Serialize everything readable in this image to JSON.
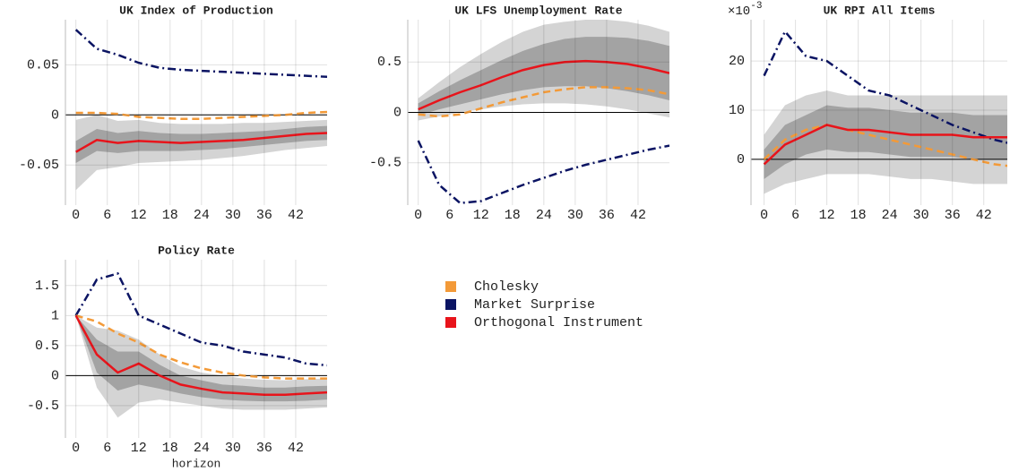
{
  "legend": [
    {
      "name": "Cholesky",
      "color": "#f39a38",
      "dash": "8 5"
    },
    {
      "name": "Market Surprise",
      "color": "#0b1463",
      "dash": "9 4 2 4"
    },
    {
      "name": "Orthogonal Instrument",
      "color": "#e8141b",
      "dash": "none"
    }
  ],
  "chart_data": [
    {
      "type": "line",
      "title": "UK Index of Production",
      "x": [
        0,
        4,
        8,
        12,
        16,
        20,
        24,
        28,
        32,
        36,
        40,
        44,
        48
      ],
      "xlim": [
        -2,
        48
      ],
      "xticks": [
        0,
        6,
        12,
        18,
        24,
        30,
        36,
        42
      ],
      "ylim": [
        -0.09,
        0.095
      ],
      "yticks": [
        -0.05,
        0,
        0.05
      ],
      "grid": true,
      "bands": [
        {
          "color": "#d4d4d4",
          "lower": [
            -0.075,
            -0.055,
            -0.052,
            -0.048,
            -0.047,
            -0.046,
            -0.045,
            -0.043,
            -0.041,
            -0.038,
            -0.035,
            -0.033,
            -0.031
          ],
          "upper": [
            -0.005,
            0.0,
            -0.006,
            -0.005,
            -0.008,
            -0.009,
            -0.009,
            -0.009,
            -0.008,
            -0.008,
            -0.007,
            -0.006,
            -0.005
          ]
        },
        {
          "color": "#a3a3a3",
          "lower": [
            -0.048,
            -0.036,
            -0.038,
            -0.036,
            -0.036,
            -0.036,
            -0.035,
            -0.034,
            -0.032,
            -0.03,
            -0.028,
            -0.026,
            -0.025
          ],
          "upper": [
            -0.026,
            -0.014,
            -0.018,
            -0.016,
            -0.018,
            -0.019,
            -0.019,
            -0.018,
            -0.017,
            -0.016,
            -0.014,
            -0.012,
            -0.011
          ]
        }
      ],
      "series": [
        {
          "values": [
            0.002,
            0.002,
            0.001,
            -0.002,
            -0.003,
            -0.004,
            -0.004,
            -0.003,
            -0.002,
            -0.001,
            0.0,
            0.002,
            0.003
          ]
        },
        {
          "values": [
            0.085,
            0.066,
            0.06,
            0.052,
            0.047,
            0.045,
            0.044,
            0.043,
            0.042,
            0.041,
            0.04,
            0.039,
            0.038
          ]
        },
        {
          "values": [
            -0.037,
            -0.025,
            -0.028,
            -0.026,
            -0.027,
            -0.028,
            -0.027,
            -0.026,
            -0.025,
            -0.023,
            -0.021,
            -0.019,
            -0.018
          ]
        }
      ]
    },
    {
      "type": "line",
      "title": "UK LFS Unemployment Rate",
      "x": [
        0,
        4,
        8,
        12,
        16,
        20,
        24,
        28,
        32,
        36,
        40,
        44,
        48
      ],
      "xlim": [
        -2,
        48
      ],
      "xticks": [
        0,
        6,
        12,
        18,
        24,
        30,
        36,
        42
      ],
      "ylim": [
        -0.92,
        0.92
      ],
      "yticks": [
        -0.5,
        0,
        0.5
      ],
      "grid": true,
      "bands": [
        {
          "color": "#d4d4d4",
          "lower": [
            -0.08,
            -0.04,
            0.0,
            0.03,
            0.06,
            0.08,
            0.09,
            0.09,
            0.08,
            0.06,
            0.03,
            -0.01,
            -0.05
          ],
          "upper": [
            0.14,
            0.3,
            0.45,
            0.58,
            0.7,
            0.8,
            0.87,
            0.9,
            0.92,
            0.92,
            0.9,
            0.86,
            0.8
          ]
        },
        {
          "color": "#a3a3a3",
          "lower": [
            -0.03,
            0.03,
            0.08,
            0.13,
            0.18,
            0.22,
            0.25,
            0.26,
            0.26,
            0.24,
            0.21,
            0.17,
            0.12
          ],
          "upper": [
            0.09,
            0.21,
            0.32,
            0.42,
            0.52,
            0.61,
            0.68,
            0.73,
            0.75,
            0.75,
            0.74,
            0.71,
            0.66
          ]
        }
      ],
      "series": [
        {
          "values": [
            -0.02,
            -0.04,
            -0.02,
            0.04,
            0.1,
            0.15,
            0.2,
            0.23,
            0.25,
            0.25,
            0.24,
            0.22,
            0.18
          ]
        },
        {
          "values": [
            -0.28,
            -0.72,
            -0.9,
            -0.88,
            -0.8,
            -0.72,
            -0.65,
            -0.58,
            -0.52,
            -0.47,
            -0.42,
            -0.37,
            -0.33
          ]
        },
        {
          "values": [
            0.03,
            0.12,
            0.2,
            0.27,
            0.35,
            0.42,
            0.47,
            0.5,
            0.51,
            0.5,
            0.48,
            0.44,
            0.39
          ]
        }
      ]
    },
    {
      "type": "line",
      "title": "UK RPI All Items",
      "yscale_base": "×10",
      "yscale_exponent": "-3",
      "x": [
        0,
        4,
        8,
        12,
        16,
        20,
        24,
        28,
        32,
        36,
        40,
        44,
        48
      ],
      "xlim": [
        -2.5,
        46.5
      ],
      "xticks": [
        0,
        6,
        12,
        18,
        24,
        30,
        36,
        42
      ],
      "ylim": [
        -9.3,
        28.4
      ],
      "yticks": [
        0,
        10,
        20
      ],
      "grid": true,
      "bands": [
        {
          "color": "#d4d4d4",
          "lower": [
            -7,
            -5,
            -4,
            -3,
            -3,
            -3,
            -3.5,
            -4,
            -4,
            -4.5,
            -5,
            -5,
            -5
          ],
          "upper": [
            5,
            11,
            13,
            14,
            13,
            13,
            13,
            13,
            13,
            13,
            13,
            13,
            13
          ]
        },
        {
          "color": "#a3a3a3",
          "lower": [
            -4,
            -1,
            1,
            2,
            1.5,
            1.5,
            1,
            0.5,
            0.5,
            0.5,
            0,
            0,
            0
          ],
          "upper": [
            2,
            7,
            9,
            11,
            10.5,
            10.5,
            10,
            9.5,
            9.5,
            9.5,
            9,
            9,
            9
          ]
        }
      ],
      "series": [
        {
          "values": [
            0,
            4,
            6,
            7,
            6,
            5,
            4,
            3,
            2,
            1,
            0,
            -1,
            -1.5
          ]
        },
        {
          "values": [
            17,
            26,
            21,
            20,
            17,
            14,
            13,
            11,
            9,
            7,
            5.5,
            4,
            3
          ]
        },
        {
          "values": [
            -1,
            3,
            5,
            7,
            6,
            6,
            5.5,
            5,
            5,
            5,
            4.5,
            4.5,
            4.5
          ]
        }
      ]
    },
    {
      "type": "line",
      "title": "Policy Rate",
      "xlabel": "horizon",
      "x": [
        0,
        4,
        8,
        12,
        16,
        20,
        24,
        28,
        32,
        36,
        40,
        44,
        48
      ],
      "xlim": [
        -2,
        48
      ],
      "xticks": [
        0,
        6,
        12,
        18,
        24,
        30,
        36,
        42
      ],
      "ylim": [
        -1.04,
        1.93
      ],
      "yticks": [
        -0.5,
        0,
        0.5,
        1,
        1.5
      ],
      "grid": true,
      "bands": [
        {
          "color": "#d4d4d4",
          "lower": [
            1.0,
            -0.2,
            -0.7,
            -0.45,
            -0.4,
            -0.45,
            -0.5,
            -0.55,
            -0.57,
            -0.57,
            -0.57,
            -0.55,
            -0.53
          ],
          "upper": [
            1.0,
            0.8,
            0.75,
            0.6,
            0.35,
            0.15,
            0.05,
            0.0,
            -0.05,
            -0.07,
            -0.08,
            -0.06,
            -0.05
          ]
        },
        {
          "color": "#a3a3a3",
          "lower": [
            1.0,
            0.05,
            -0.25,
            -0.15,
            -0.22,
            -0.3,
            -0.36,
            -0.4,
            -0.42,
            -0.43,
            -0.43,
            -0.42,
            -0.4
          ],
          "upper": [
            1.0,
            0.6,
            0.4,
            0.4,
            0.18,
            0.0,
            -0.08,
            -0.15,
            -0.17,
            -0.2,
            -0.2,
            -0.18,
            -0.17
          ]
        }
      ],
      "series": [
        {
          "values": [
            1.0,
            0.9,
            0.7,
            0.55,
            0.35,
            0.22,
            0.12,
            0.05,
            0.0,
            -0.03,
            -0.05,
            -0.05,
            -0.05
          ]
        },
        {
          "values": [
            1.0,
            1.6,
            1.7,
            1.0,
            0.85,
            0.7,
            0.55,
            0.5,
            0.4,
            0.35,
            0.3,
            0.2,
            0.17
          ]
        },
        {
          "values": [
            1.0,
            0.35,
            0.05,
            0.2,
            0.0,
            -0.15,
            -0.22,
            -0.28,
            -0.3,
            -0.32,
            -0.32,
            -0.3,
            -0.28
          ]
        }
      ]
    }
  ]
}
